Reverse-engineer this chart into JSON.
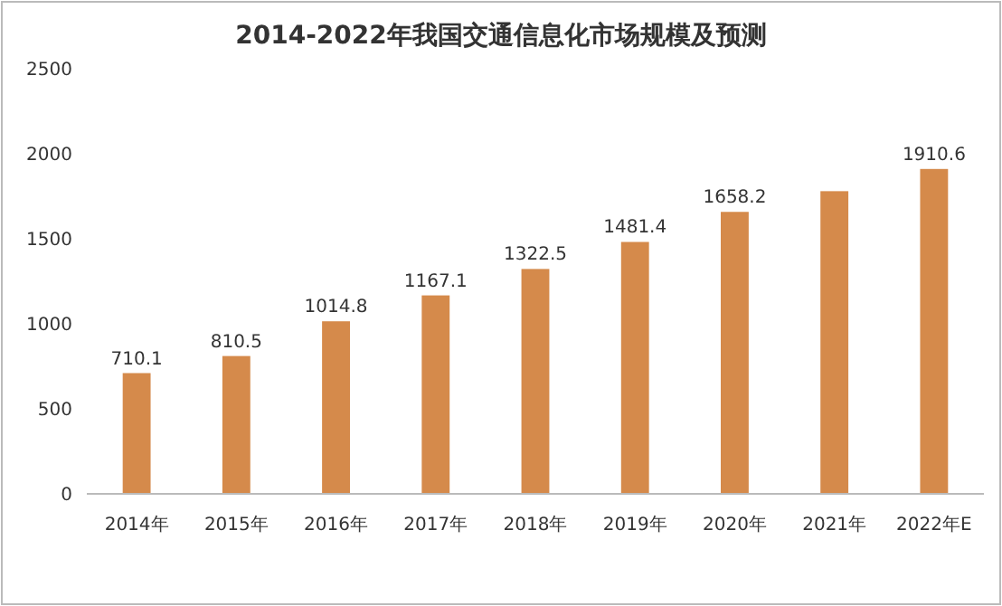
{
  "chart_data": {
    "type": "bar",
    "title": "2014-2022年我国交通信息化市场规模及预测",
    "categories": [
      "2014年",
      "2015年",
      "2016年",
      "2017年",
      "2018年",
      "2019年",
      "2020年",
      "2021年",
      "2022年E"
    ],
    "values": [
      710.1,
      810.5,
      1014.8,
      1167.1,
      1322.5,
      1481.4,
      1658.2,
      1780,
      1910.6
    ],
    "value_labels": [
      "710.1",
      "810.5",
      "1014.8",
      "1167.1",
      "1322.5",
      "1481.4",
      "1658.2",
      null,
      "1910.6"
    ],
    "color": "#d58a4b",
    "ylim": [
      0,
      2500
    ],
    "yticks": [
      0,
      500,
      1000,
      1500,
      2000,
      2500
    ],
    "grid": false
  }
}
